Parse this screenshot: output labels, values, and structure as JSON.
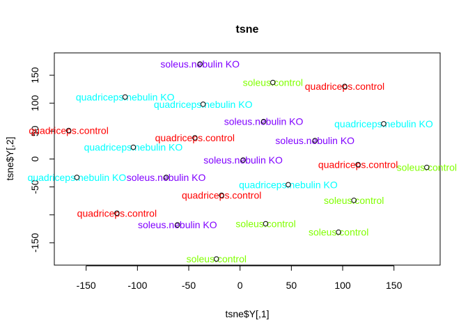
{
  "chart_data": {
    "type": "scatter",
    "title": "tsne",
    "xlabel": "tsne$Y[,1]",
    "ylabel": "tsne$Y[,2]",
    "xlim": [
      -181,
      195
    ],
    "ylim": [
      -190,
      190
    ],
    "xticks": [
      -150,
      -100,
      -50,
      0,
      50,
      100,
      150
    ],
    "yticks": [
      -150,
      -100,
      -50,
      0,
      50,
      100,
      150
    ],
    "ytick_labels": [
      "-150",
      "",
      "-50",
      "0",
      "50",
      "100",
      "150"
    ],
    "grid": false,
    "legend": "none",
    "colors": {
      "soleus.nebulin KO": "#8000ff",
      "soleus.control": "#80ff00",
      "quadriceps.nebulin KO": "#00ffff",
      "quadriceps.control": "#ff0000"
    },
    "points": [
      {
        "x": -39,
        "y": 170,
        "label": "soleus.nebulin KO"
      },
      {
        "x": 32,
        "y": 137,
        "label": "soleus.control"
      },
      {
        "x": 102,
        "y": 130,
        "label": "quadriceps.control"
      },
      {
        "x": -112,
        "y": 111,
        "label": "quadriceps.nebulin KO"
      },
      {
        "x": -36,
        "y": 98,
        "label": "quadriceps.nebulin KO"
      },
      {
        "x": 23,
        "y": 67,
        "label": "soleus.nebulin KO"
      },
      {
        "x": 140,
        "y": 63,
        "label": "quadriceps.nebulin KO"
      },
      {
        "x": -167,
        "y": 51,
        "label": "quadriceps.control"
      },
      {
        "x": -44,
        "y": 38,
        "label": "quadriceps.control"
      },
      {
        "x": 73,
        "y": 33,
        "label": "soleus.nebulin KO"
      },
      {
        "x": -104,
        "y": 21,
        "label": "quadriceps.nebulin KO"
      },
      {
        "x": 3,
        "y": -2,
        "label": "soleus.nebulin KO"
      },
      {
        "x": 115,
        "y": -10,
        "label": "quadriceps.control"
      },
      {
        "x": 182,
        "y": -15,
        "label": "soleus.control"
      },
      {
        "x": -159,
        "y": -33,
        "label": "quadriceps.nebulin KO"
      },
      {
        "x": -72,
        "y": -33,
        "label": "soleus.nebulin KO"
      },
      {
        "x": 47,
        "y": -46,
        "label": "quadriceps.nebulin KO"
      },
      {
        "x": -18,
        "y": -65,
        "label": "quadriceps.control"
      },
      {
        "x": 111,
        "y": -74,
        "label": "soleus.control"
      },
      {
        "x": -120,
        "y": -97,
        "label": "quadriceps.control"
      },
      {
        "x": -61,
        "y": -118,
        "label": "soleus.nebulin KO"
      },
      {
        "x": 25,
        "y": -116,
        "label": "soleus.control"
      },
      {
        "x": 96,
        "y": -131,
        "label": "soleus.control"
      },
      {
        "x": -23,
        "y": -179,
        "label": "soleus.control"
      }
    ]
  }
}
